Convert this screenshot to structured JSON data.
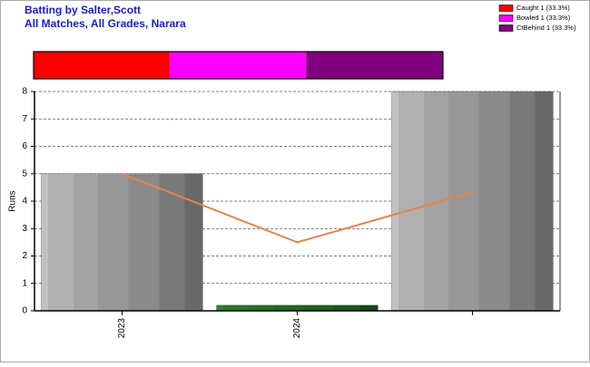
{
  "chart_data": [
    {
      "type": "stacked-bar-h",
      "title": "Batting by Salter,Scott",
      "subtitle": "All Matches, All Grades, Narara",
      "xlim": [
        0,
        100
      ],
      "series": [
        {
          "name": "Caught 1 (33.3%)",
          "color": "#ff0000",
          "values": [
            33.3
          ]
        },
        {
          "name": "Bowled 1 (33.3%)",
          "color": "#ff00ff",
          "values": [
            33.3
          ]
        },
        {
          "name": "CtBehind 1 (33.3%)",
          "color": "#800080",
          "values": [
            33.3
          ]
        }
      ]
    },
    {
      "type": "bar",
      "y_label": "Runs",
      "categories": [
        "2023",
        "2024",
        null
      ],
      "values": [
        5,
        0.2,
        8
      ],
      "colors": [
        "#a8a8a8",
        "#1e7a1e",
        "#a8a8a8"
      ],
      "line": {
        "color": "#e8834a",
        "values": [
          5,
          2.5,
          4.33
        ]
      },
      "ylim": [
        0,
        8
      ],
      "yticks": [
        0,
        1,
        2,
        3,
        4,
        5,
        6,
        7,
        8
      ],
      "grid": true
    }
  ]
}
